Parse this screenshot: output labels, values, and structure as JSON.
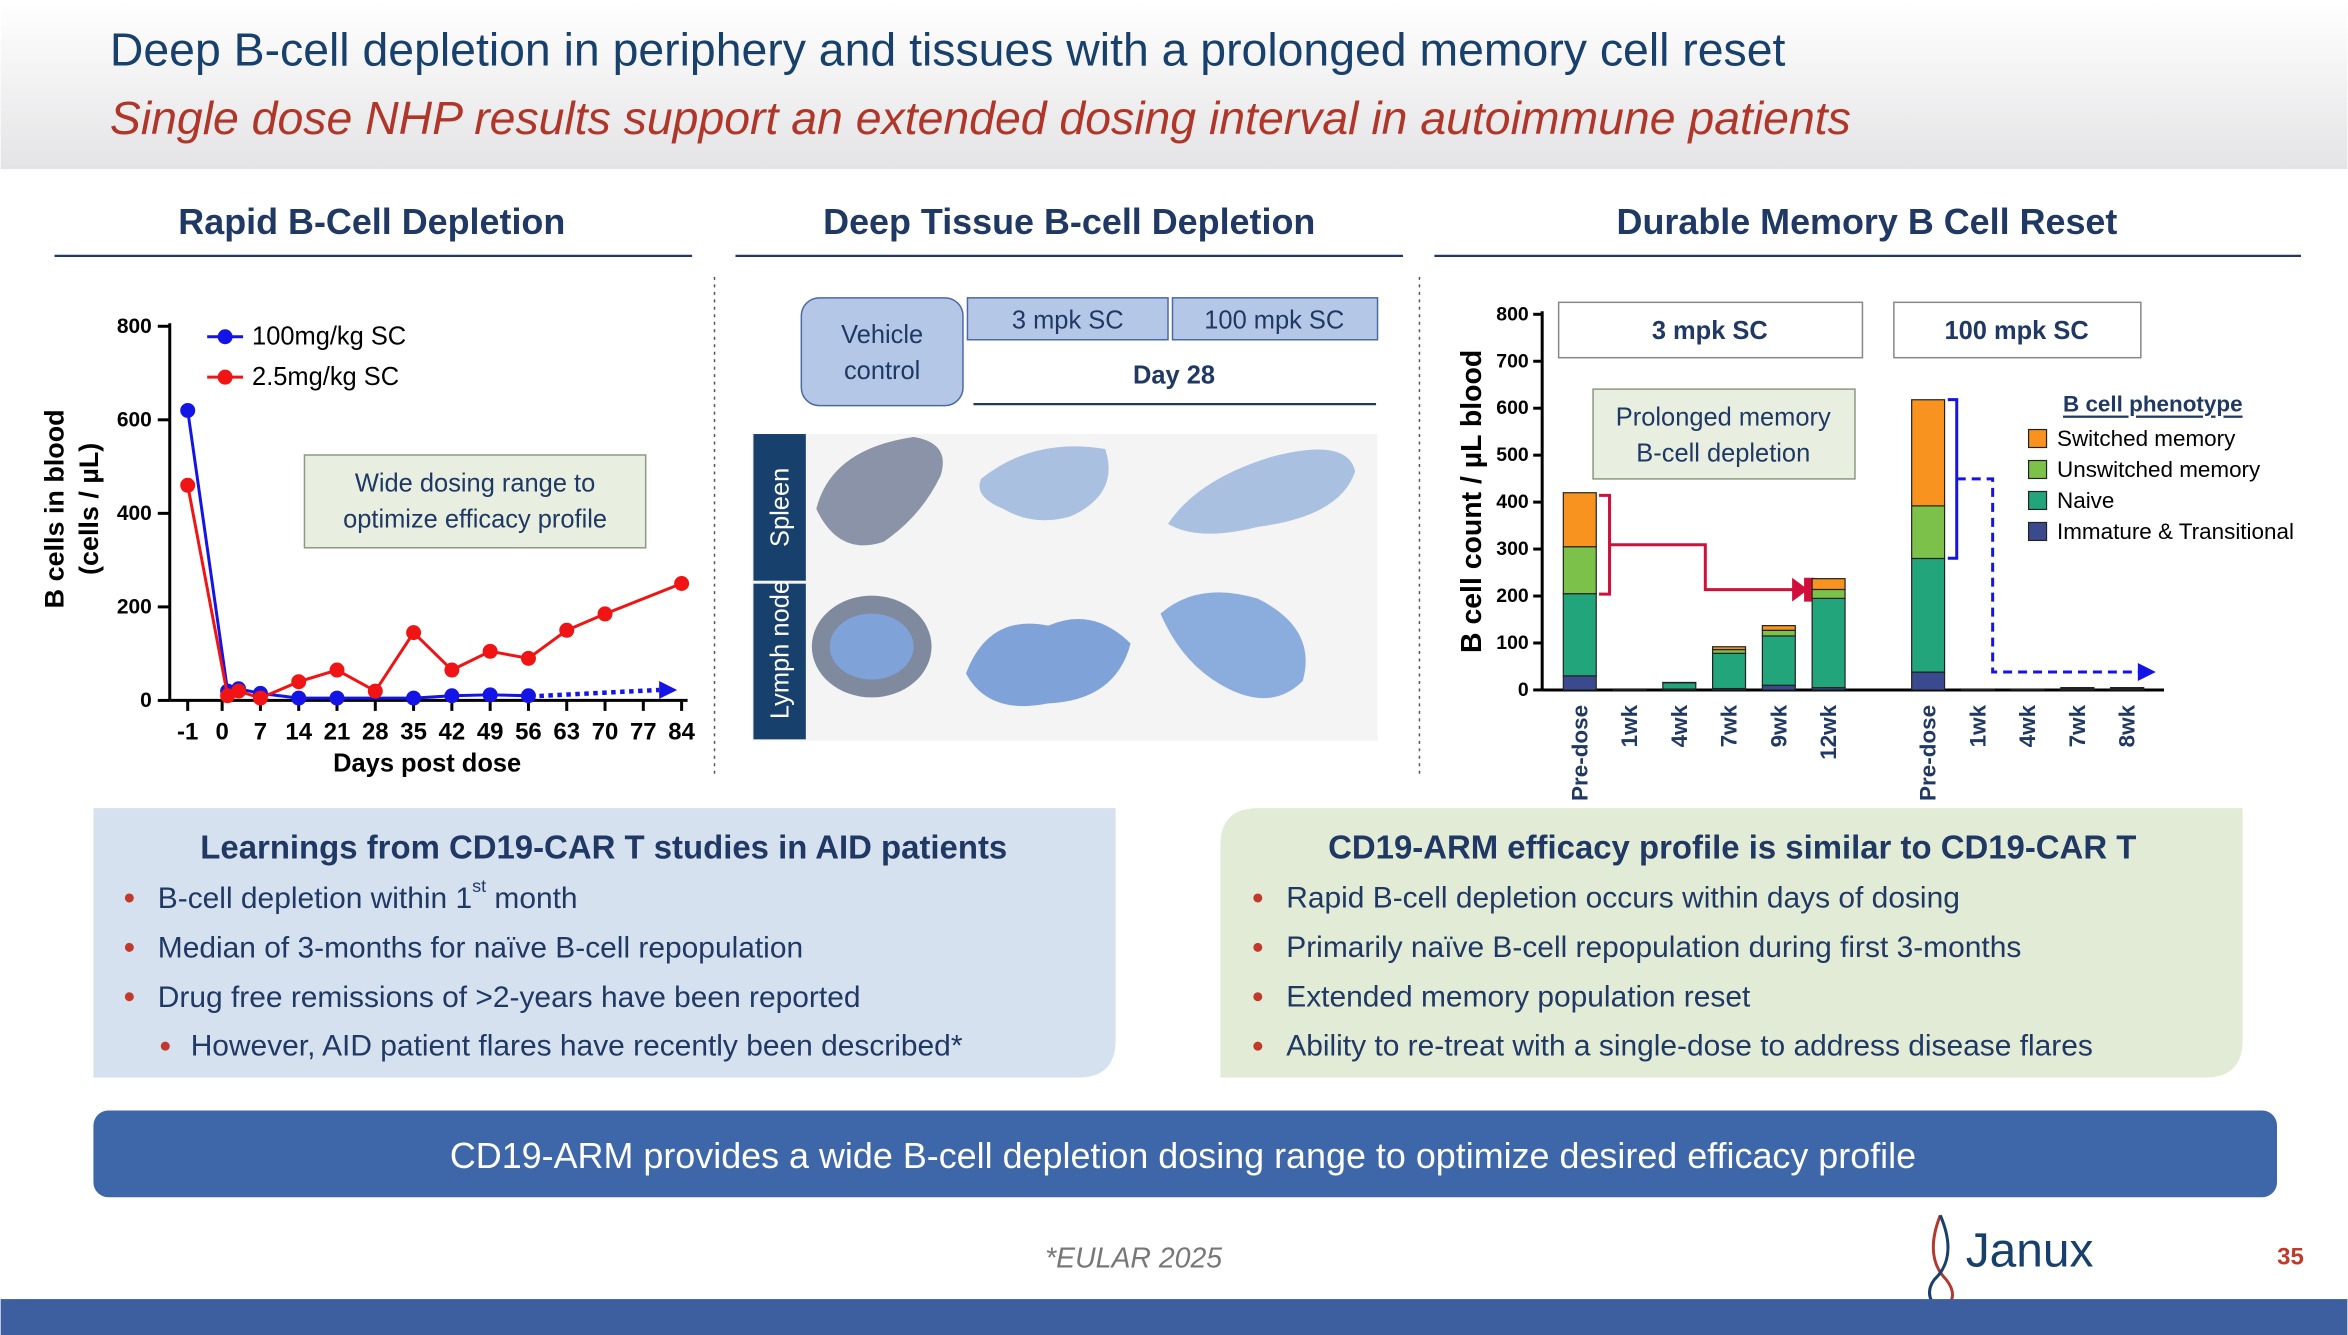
{
  "header": {
    "title": "Deep B-cell depletion in periphery and tissues with a prolonged memory cell reset",
    "subtitle": "Single dose NHP results support an extended dosing interval in autoimmune patients"
  },
  "chart_data": [
    {
      "type": "line",
      "title": "Rapid B-Cell Depletion",
      "x_label": "Days post dose",
      "y_label": [
        "B cells in blood",
        "(cells / µL)"
      ],
      "annotation": [
        "Wide dosing range to",
        "optimize efficacy profile"
      ],
      "xlim": [
        -1,
        84
      ],
      "xticks": [
        -1,
        0,
        7,
        14,
        21,
        28,
        35,
        42,
        49,
        56,
        63,
        70,
        77,
        84
      ],
      "ylim": [
        0,
        800
      ],
      "yticks": [
        0,
        200,
        400,
        600,
        800
      ],
      "series": [
        {
          "name": "100mg/kg SC",
          "color": "#1414e6",
          "x": [
            -1,
            1,
            3,
            7,
            14,
            21,
            35,
            42,
            49,
            56
          ],
          "values": [
            620,
            20,
            25,
            15,
            5,
            5,
            5,
            10,
            12,
            10
          ]
        },
        {
          "name": "2.5mg/kg SC",
          "color": "#f01414",
          "x": [
            -1,
            1,
            3,
            7,
            14,
            21,
            28,
            35,
            42,
            49,
            56,
            63,
            70,
            84
          ],
          "values": [
            460,
            10,
            20,
            5,
            40,
            65,
            20,
            145,
            65,
            105,
            90,
            150,
            185,
            250
          ]
        }
      ]
    },
    {
      "type": "stacked_bar",
      "title": "Durable Memory B Cell Reset",
      "y_label": "B cell count / µL blood",
      "group_labels": [
        "3 mpk SC",
        "100 mpk SC"
      ],
      "annotation": [
        "Prolonged memory",
        "B-cell depletion"
      ],
      "legend_title": "B cell phenotype",
      "categories": [
        "Pre-dose",
        "1wk",
        "4wk",
        "7wk",
        "9wk",
        "12wk",
        null,
        "Pre-dose",
        "1wk",
        "4wk",
        "7wk",
        "8wk"
      ],
      "ylim": [
        0,
        800
      ],
      "yticks": [
        0,
        100,
        200,
        300,
        400,
        500,
        600,
        700,
        800
      ],
      "series": [
        {
          "name": "Immature & Transitional",
          "color": "#3b4a8e",
          "values": [
            30,
            1,
            2,
            3,
            10,
            5,
            null,
            38,
            1,
            1,
            2,
            2
          ]
        },
        {
          "name": "Naive",
          "color": "#23a57c",
          "values": [
            175,
            1,
            13,
            75,
            105,
            190,
            null,
            242,
            0,
            0,
            2,
            2
          ]
        },
        {
          "name": "Unswitched memory",
          "color": "#7cc24a",
          "values": [
            100,
            0,
            1,
            8,
            12,
            19,
            null,
            112,
            0,
            0,
            0,
            0
          ]
        },
        {
          "name": "Switched memory",
          "color": "#f7931e",
          "values": [
            115,
            0,
            0,
            6,
            10,
            23,
            null,
            226,
            0,
            0,
            1,
            1
          ]
        }
      ]
    }
  ],
  "tissue": {
    "title": "Deep Tissue B-cell Depletion",
    "control": [
      "Vehicle",
      "control"
    ],
    "doses": [
      "3 mpk SC",
      "100 mpk SC"
    ],
    "day": "Day 28",
    "rows": [
      "Spleen",
      "Lymph node"
    ]
  },
  "learnings": {
    "title": "Learnings from CD19-CAR T studies in AID patients",
    "bullets": [
      {
        "text": "B-cell depletion within 1",
        "sup": "st",
        "rest": " month"
      },
      {
        "text": "Median of 3-months for naïve B-cell repopulation"
      },
      {
        "text": "Drug free remissions of >2-years have been reported"
      }
    ],
    "sub_bullets": [
      "However, AID patient flares have recently been described*"
    ]
  },
  "efficacy": {
    "title": "CD19-ARM efficacy profile is similar to CD19-CAR T",
    "bullets": [
      "Rapid B-cell depletion occurs within days of dosing",
      "Primarily naïve B-cell repopulation during first 3-months",
      "Extended memory population reset",
      "Ability to re-treat with a single-dose to address disease flares"
    ]
  },
  "banner": "CD19-ARM provides a wide B-cell depletion dosing range to optimize desired efficacy profile",
  "footnote": "*EULAR 2025",
  "logo": "Janux",
  "page_number": "35"
}
